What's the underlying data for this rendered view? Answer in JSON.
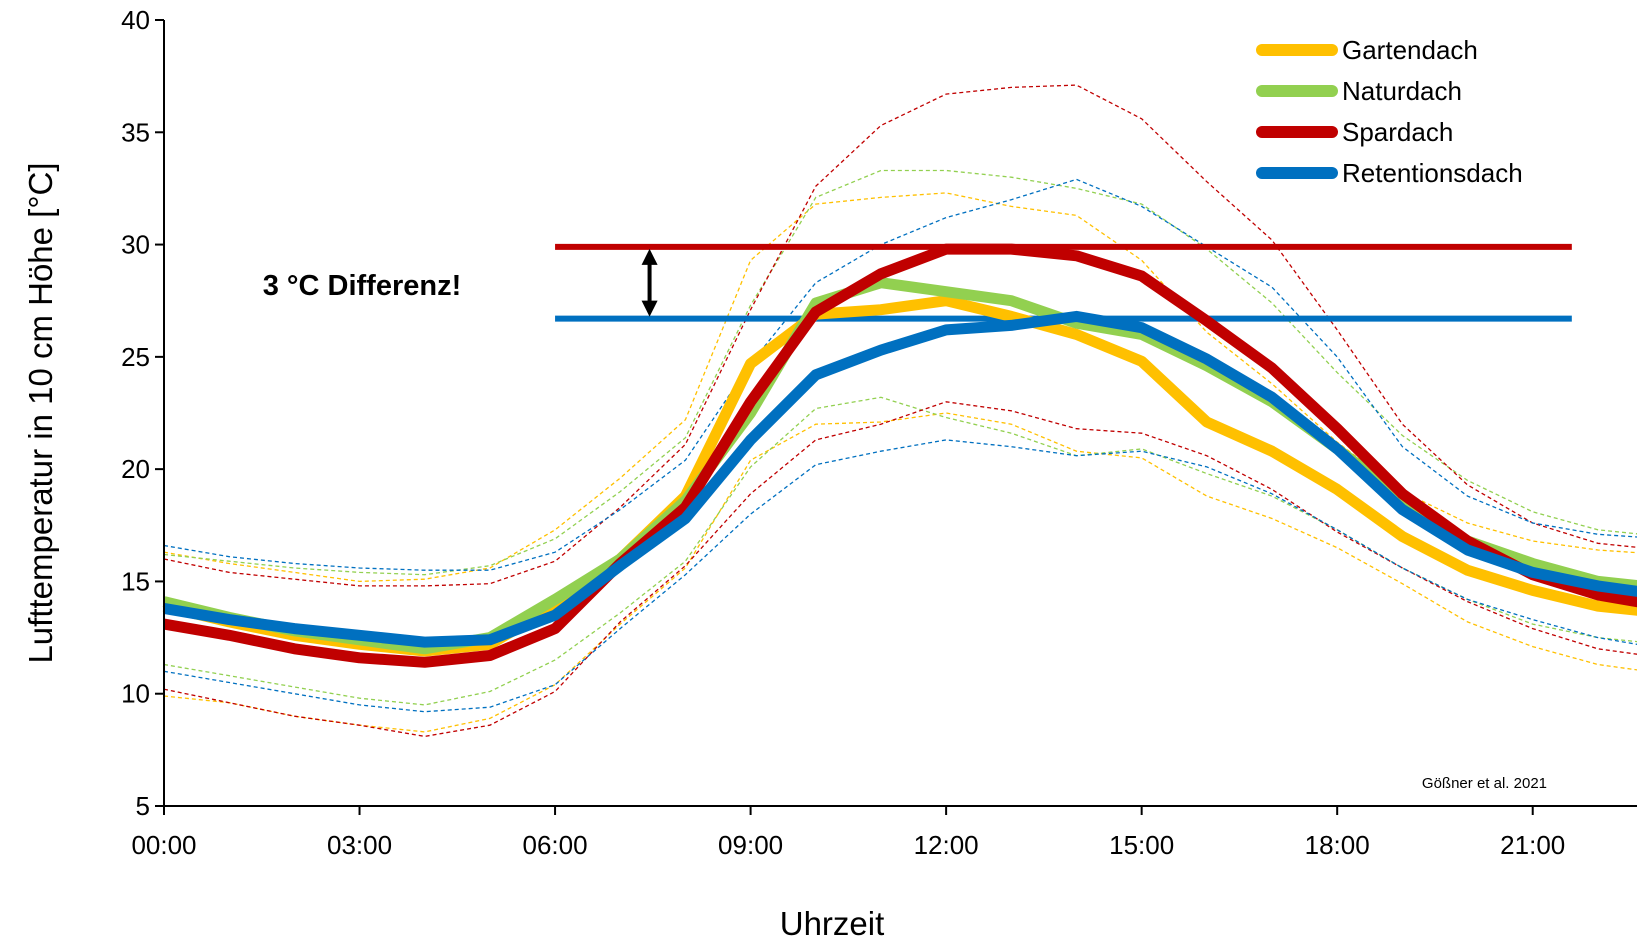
{
  "chart_data": {
    "type": "line",
    "xlabel": "Uhrzeit",
    "ylabel": "Lufttemperatur in 10 cm Höhe [°C]",
    "x_hours": [
      0,
      1,
      2,
      3,
      4,
      5,
      6,
      7,
      8,
      9,
      10,
      11,
      12,
      13,
      14,
      15,
      16,
      17,
      18,
      19,
      20,
      21,
      22,
      23
    ],
    "x_ticks": [
      {
        "hour": 0,
        "label": "00:00"
      },
      {
        "hour": 3,
        "label": "03:00"
      },
      {
        "hour": 6,
        "label": "06:00"
      },
      {
        "hour": 9,
        "label": "09:00"
      },
      {
        "hour": 12,
        "label": "12:00"
      },
      {
        "hour": 15,
        "label": "15:00"
      },
      {
        "hour": 18,
        "label": "18:00"
      },
      {
        "hour": 21,
        "label": "21:00"
      }
    ],
    "x_range_hours": [
      0,
      22.6
    ],
    "y_range": [
      5,
      40
    ],
    "y_ticks": [
      5,
      10,
      15,
      20,
      25,
      30,
      35,
      40
    ],
    "grid": false,
    "legend_position": "top-right",
    "series": [
      {
        "name": "Gartendach",
        "color": "#FFC000",
        "values": [
          13.9,
          13.2,
          12.6,
          12.2,
          11.9,
          12.2,
          13.9,
          16.0,
          18.8,
          24.7,
          26.9,
          27.1,
          27.5,
          26.8,
          26.0,
          24.8,
          22.1,
          20.8,
          19.1,
          17.0,
          15.5,
          14.6,
          13.9,
          13.6
        ],
        "upper": [
          16.3,
          15.8,
          15.4,
          15.0,
          15.1,
          15.6,
          17.3,
          19.6,
          22.2,
          29.3,
          31.8,
          32.1,
          32.3,
          31.7,
          31.3,
          29.3,
          26.1,
          23.8,
          21.2,
          19.0,
          17.6,
          16.8,
          16.4,
          16.2
        ],
        "lower": [
          9.9,
          9.6,
          9.0,
          8.6,
          8.3,
          8.9,
          10.4,
          13.1,
          15.6,
          20.4,
          22.0,
          22.1,
          22.5,
          22.0,
          20.8,
          20.5,
          18.8,
          17.8,
          16.5,
          14.9,
          13.2,
          12.1,
          11.3,
          10.9
        ]
      },
      {
        "name": "Naturdach",
        "color": "#92D050",
        "values": [
          14.1,
          13.4,
          12.8,
          12.4,
          12.0,
          12.5,
          14.2,
          16.0,
          18.6,
          22.5,
          27.4,
          28.3,
          27.9,
          27.5,
          26.5,
          26.0,
          24.6,
          23.0,
          20.9,
          18.7,
          16.8,
          15.8,
          15.0,
          14.7
        ],
        "upper": [
          16.2,
          15.9,
          15.6,
          15.4,
          15.3,
          15.7,
          16.9,
          19.0,
          21.4,
          27.3,
          32.1,
          33.3,
          33.3,
          33.0,
          32.5,
          31.8,
          29.8,
          27.4,
          24.3,
          21.5,
          19.5,
          18.1,
          17.3,
          17.0
        ],
        "lower": [
          11.3,
          10.8,
          10.3,
          9.8,
          9.5,
          10.1,
          11.5,
          13.6,
          15.9,
          20.1,
          22.7,
          23.2,
          22.3,
          21.6,
          20.6,
          20.9,
          19.8,
          18.8,
          17.3,
          15.6,
          14.2,
          13.1,
          12.5,
          12.2
        ]
      },
      {
        "name": "Spardach",
        "color": "#C00000",
        "values": [
          13.1,
          12.6,
          12.0,
          11.6,
          11.4,
          11.7,
          12.9,
          15.8,
          18.3,
          23.0,
          27.0,
          28.7,
          29.8,
          29.8,
          29.5,
          28.6,
          26.6,
          24.5,
          21.8,
          18.9,
          16.8,
          15.3,
          14.4,
          13.9
        ],
        "upper": [
          16.0,
          15.4,
          15.1,
          14.8,
          14.8,
          14.9,
          15.9,
          18.3,
          21.1,
          27.1,
          32.6,
          35.3,
          36.7,
          37.0,
          37.1,
          35.6,
          32.8,
          30.2,
          26.2,
          22.0,
          19.3,
          17.6,
          16.7,
          16.4
        ],
        "lower": [
          10.2,
          9.6,
          9.0,
          8.6,
          8.1,
          8.6,
          10.1,
          13.2,
          15.7,
          18.9,
          21.3,
          22.0,
          23.0,
          22.6,
          21.8,
          21.6,
          20.6,
          19.1,
          17.2,
          15.6,
          14.1,
          12.9,
          12.0,
          11.6
        ]
      },
      {
        "name": "Retentionsdach",
        "color": "#0070C0",
        "values": [
          13.8,
          13.3,
          12.9,
          12.6,
          12.3,
          12.4,
          13.5,
          15.7,
          17.8,
          21.3,
          24.2,
          25.3,
          26.2,
          26.4,
          26.8,
          26.3,
          24.9,
          23.2,
          20.9,
          18.2,
          16.4,
          15.4,
          14.8,
          14.4
        ],
        "upper": [
          16.6,
          16.1,
          15.8,
          15.6,
          15.5,
          15.5,
          16.3,
          18.2,
          20.4,
          24.7,
          28.3,
          30.0,
          31.2,
          32.0,
          32.9,
          31.7,
          29.9,
          28.1,
          25.0,
          21.0,
          18.8,
          17.6,
          17.1,
          16.9
        ],
        "lower": [
          11.0,
          10.5,
          10.0,
          9.5,
          9.2,
          9.4,
          10.4,
          12.9,
          15.3,
          18.0,
          20.2,
          20.8,
          21.3,
          21.0,
          20.6,
          20.8,
          20.1,
          18.9,
          17.3,
          15.6,
          14.2,
          13.3,
          12.5,
          12.0
        ]
      }
    ],
    "reference_lines": [
      {
        "series": "Spardach",
        "value": 29.9,
        "hour_start": 6.0,
        "hour_end": 21.6,
        "color": "#C00000"
      },
      {
        "series": "Retentionsdach",
        "value": 26.7,
        "hour_start": 6.0,
        "hour_end": 21.6,
        "color": "#0070C0"
      }
    ],
    "difference_arrow": {
      "hour": 7.45,
      "from": 29.9,
      "to": 26.7
    },
    "annotation": "3 °C Differenz!",
    "credit": "Gößner et al. 2021"
  }
}
